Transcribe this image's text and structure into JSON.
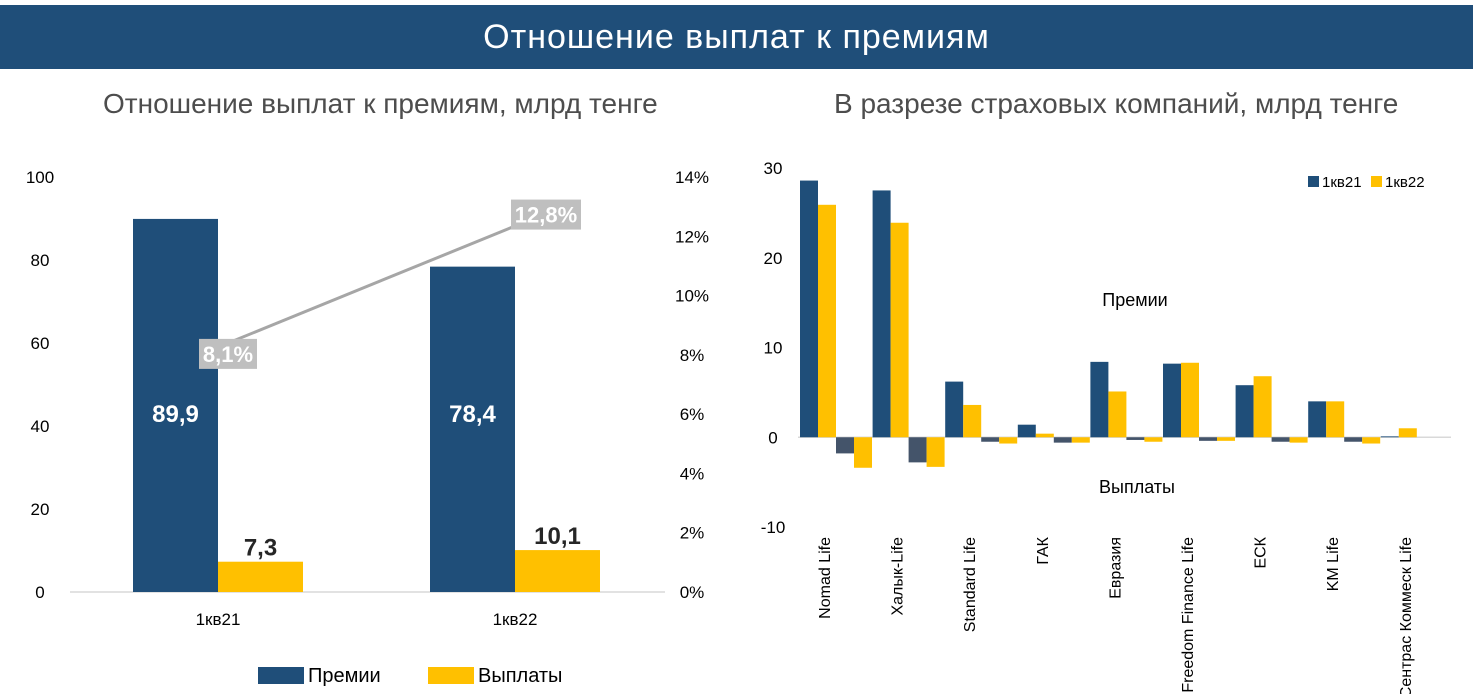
{
  "banner": {
    "title": "Отношение выплат к премиям"
  },
  "colors": {
    "banner": "#1f4e79",
    "premium": "#1f4e79",
    "payout": "#ffc000",
    "ratio_line": "#a6a6a6",
    "ratio_label_bg": "#bfbfbf",
    "payout_negative": "#44546a"
  },
  "chart_data": [
    {
      "type": "bar",
      "title": "Отношение выплат к премиям, млрд тенге",
      "categories": [
        "1кв21",
        "1кв22"
      ],
      "series": [
        {
          "name": "Премии",
          "values": [
            89.9,
            78.4
          ],
          "labels": [
            "89,9",
            "78,4"
          ]
        },
        {
          "name": "Выплаты",
          "values": [
            7.3,
            10.1
          ],
          "labels": [
            "7,3",
            "10,1"
          ]
        }
      ],
      "line": {
        "values": [
          8.1,
          12.8
        ],
        "labels": [
          "8,1%",
          "12,8%"
        ]
      },
      "ylim": [
        0,
        100
      ],
      "yticks": [
        "0",
        "20",
        "40",
        "60",
        "80",
        "100"
      ],
      "y2lim": [
        0,
        14
      ],
      "y2ticks": [
        "0%",
        "2%",
        "4%",
        "6%",
        "8%",
        "10%",
        "12%",
        "14%"
      ],
      "legend": "bottom",
      "grid": false
    },
    {
      "type": "bar",
      "title": "В разрезе страховых компаний, млрд тенге",
      "categories": [
        "Nomad Life",
        "Халык-Life",
        "Standard Life",
        "ГАК",
        "Евразия",
        "Freedom Finance Life",
        "ЕСК",
        "KM Life",
        "Сентрас Коммеск Life"
      ],
      "series": [
        {
          "name": "1кв21",
          "premiums": [
            28.6,
            27.5,
            6.2,
            1.4,
            8.4,
            8.2,
            5.8,
            4.0,
            0.1
          ],
          "payouts": [
            -1.8,
            -2.8,
            -0.5,
            -0.6,
            -0.3,
            -0.4,
            -0.5,
            -0.5,
            0.0
          ]
        },
        {
          "name": "1кв22",
          "premiums": [
            25.9,
            23.9,
            3.6,
            0.4,
            5.1,
            8.3,
            6.8,
            4.0,
            1.0
          ],
          "payouts": [
            -3.4,
            -3.3,
            -0.7,
            -0.6,
            -0.5,
            -0.4,
            -0.6,
            -0.7,
            0.0
          ]
        }
      ],
      "annotations": [
        "Премии",
        "Выплаты"
      ],
      "ylim": [
        -10,
        30
      ],
      "yticks": [
        "-10",
        "0",
        "10",
        "20",
        "30"
      ],
      "legend": "top-right",
      "grid": false
    }
  ]
}
